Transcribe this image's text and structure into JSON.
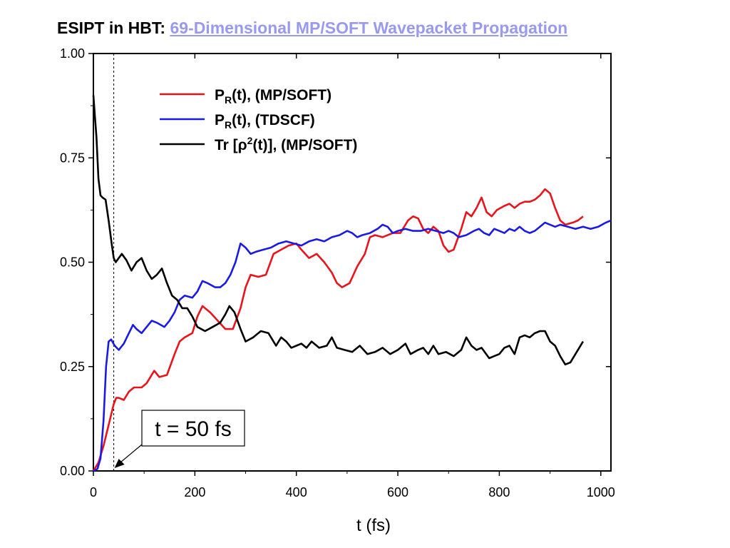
{
  "header": {
    "title_prefix": "ESIPT in HBT:",
    "title_link": "69-Dimensional MP/SOFT Wavepacket Propagation"
  },
  "colors": {
    "pr_mpsoft": "#e8141b",
    "pr_tdscf": "#1a1ae6",
    "trace": "#000000",
    "link": "#9999ee"
  },
  "chart_data": {
    "type": "line",
    "title": "ESIPT in HBT: 69-Dimensional MP/SOFT Wavepacket Propagation",
    "xlabel": "t (fs)",
    "ylabel": "",
    "xlim": [
      0,
      1020
    ],
    "ylim": [
      0,
      1.0
    ],
    "x_ticks": [
      "0",
      "200",
      "400",
      "600",
      "800",
      "1000"
    ],
    "y_ticks": [
      "0.00",
      "0.25",
      "0.50",
      "0.75",
      "1.00"
    ],
    "grid": false,
    "legend_position": "top-center",
    "series": [
      {
        "name": "PR(t), (MP/SOFT)",
        "legend_main": "P",
        "legend_sub": "R",
        "legend_rest": "(t), (MP/SOFT)",
        "color": "#e8141b",
        "points": [
          [
            0,
            0
          ],
          [
            10,
            0.02
          ],
          [
            20,
            0.06
          ],
          [
            30,
            0.11
          ],
          [
            40,
            0.16
          ],
          [
            45,
            0.175
          ],
          [
            50,
            0.175
          ],
          [
            60,
            0.17
          ],
          [
            70,
            0.19
          ],
          [
            80,
            0.2
          ],
          [
            95,
            0.2
          ],
          [
            105,
            0.21
          ],
          [
            120,
            0.24
          ],
          [
            130,
            0.225
          ],
          [
            145,
            0.23
          ],
          [
            160,
            0.28
          ],
          [
            170,
            0.31
          ],
          [
            180,
            0.32
          ],
          [
            195,
            0.33
          ],
          [
            205,
            0.37
          ],
          [
            215,
            0.395
          ],
          [
            230,
            0.38
          ],
          [
            245,
            0.36
          ],
          [
            260,
            0.34
          ],
          [
            275,
            0.34
          ],
          [
            290,
            0.39
          ],
          [
            300,
            0.44
          ],
          [
            310,
            0.47
          ],
          [
            325,
            0.465
          ],
          [
            340,
            0.47
          ],
          [
            355,
            0.52
          ],
          [
            370,
            0.53
          ],
          [
            385,
            0.54
          ],
          [
            400,
            0.545
          ],
          [
            410,
            0.53
          ],
          [
            425,
            0.51
          ],
          [
            440,
            0.52
          ],
          [
            455,
            0.5
          ],
          [
            470,
            0.475
          ],
          [
            480,
            0.45
          ],
          [
            490,
            0.44
          ],
          [
            505,
            0.45
          ],
          [
            520,
            0.49
          ],
          [
            535,
            0.52
          ],
          [
            545,
            0.56
          ],
          [
            555,
            0.565
          ],
          [
            570,
            0.56
          ],
          [
            590,
            0.57
          ],
          [
            605,
            0.57
          ],
          [
            620,
            0.6
          ],
          [
            630,
            0.61
          ],
          [
            640,
            0.605
          ],
          [
            650,
            0.58
          ],
          [
            660,
            0.57
          ],
          [
            670,
            0.585
          ],
          [
            680,
            0.575
          ],
          [
            690,
            0.54
          ],
          [
            700,
            0.525
          ],
          [
            710,
            0.53
          ],
          [
            725,
            0.58
          ],
          [
            735,
            0.62
          ],
          [
            745,
            0.61
          ],
          [
            755,
            0.63
          ],
          [
            765,
            0.655
          ],
          [
            775,
            0.62
          ],
          [
            785,
            0.61
          ],
          [
            795,
            0.625
          ],
          [
            810,
            0.635
          ],
          [
            820,
            0.64
          ],
          [
            830,
            0.63
          ],
          [
            840,
            0.64
          ],
          [
            850,
            0.645
          ],
          [
            860,
            0.645
          ],
          [
            870,
            0.65
          ],
          [
            880,
            0.66
          ],
          [
            890,
            0.675
          ],
          [
            900,
            0.665
          ],
          [
            910,
            0.63
          ],
          [
            920,
            0.6
          ],
          [
            930,
            0.59
          ],
          [
            945,
            0.595
          ],
          [
            955,
            0.6
          ],
          [
            965,
            0.61
          ]
        ]
      },
      {
        "name": "PR(t), (TDSCF)",
        "legend_main": "P",
        "legend_sub": "R",
        "legend_rest": "(t), (TDSCF)",
        "color": "#1a1ae6",
        "points": [
          [
            0,
            0
          ],
          [
            8,
            0.005
          ],
          [
            14,
            0.03
          ],
          [
            20,
            0.12
          ],
          [
            25,
            0.25
          ],
          [
            30,
            0.31
          ],
          [
            35,
            0.315
          ],
          [
            42,
            0.3
          ],
          [
            50,
            0.29
          ],
          [
            60,
            0.305
          ],
          [
            70,
            0.33
          ],
          [
            78,
            0.35
          ],
          [
            85,
            0.34
          ],
          [
            95,
            0.33
          ],
          [
            105,
            0.345
          ],
          [
            115,
            0.36
          ],
          [
            125,
            0.355
          ],
          [
            140,
            0.345
          ],
          [
            150,
            0.36
          ],
          [
            160,
            0.38
          ],
          [
            170,
            0.41
          ],
          [
            180,
            0.42
          ],
          [
            195,
            0.415
          ],
          [
            205,
            0.43
          ],
          [
            215,
            0.455
          ],
          [
            225,
            0.45
          ],
          [
            240,
            0.44
          ],
          [
            250,
            0.44
          ],
          [
            260,
            0.45
          ],
          [
            270,
            0.47
          ],
          [
            280,
            0.5
          ],
          [
            290,
            0.545
          ],
          [
            300,
            0.535
          ],
          [
            310,
            0.52
          ],
          [
            320,
            0.525
          ],
          [
            335,
            0.53
          ],
          [
            350,
            0.535
          ],
          [
            365,
            0.545
          ],
          [
            380,
            0.55
          ],
          [
            395,
            0.545
          ],
          [
            410,
            0.54
          ],
          [
            425,
            0.55
          ],
          [
            440,
            0.555
          ],
          [
            455,
            0.55
          ],
          [
            470,
            0.56
          ],
          [
            485,
            0.565
          ],
          [
            500,
            0.575
          ],
          [
            510,
            0.57
          ],
          [
            520,
            0.56
          ],
          [
            530,
            0.565
          ],
          [
            545,
            0.57
          ],
          [
            560,
            0.58
          ],
          [
            570,
            0.59
          ],
          [
            580,
            0.585
          ],
          [
            590,
            0.57
          ],
          [
            600,
            0.575
          ],
          [
            615,
            0.58
          ],
          [
            630,
            0.575
          ],
          [
            645,
            0.575
          ],
          [
            660,
            0.58
          ],
          [
            675,
            0.575
          ],
          [
            690,
            0.57
          ],
          [
            700,
            0.575
          ],
          [
            710,
            0.57
          ],
          [
            720,
            0.56
          ],
          [
            735,
            0.565
          ],
          [
            750,
            0.575
          ],
          [
            760,
            0.58
          ],
          [
            770,
            0.57
          ],
          [
            780,
            0.565
          ],
          [
            790,
            0.58
          ],
          [
            800,
            0.575
          ],
          [
            810,
            0.57
          ],
          [
            820,
            0.58
          ],
          [
            830,
            0.575
          ],
          [
            840,
            0.585
          ],
          [
            850,
            0.575
          ],
          [
            860,
            0.57
          ],
          [
            870,
            0.575
          ],
          [
            880,
            0.585
          ],
          [
            890,
            0.595
          ],
          [
            900,
            0.59
          ],
          [
            910,
            0.585
          ],
          [
            920,
            0.59
          ],
          [
            935,
            0.585
          ],
          [
            950,
            0.58
          ],
          [
            965,
            0.585
          ],
          [
            980,
            0.58
          ],
          [
            995,
            0.585
          ],
          [
            1010,
            0.595
          ],
          [
            1020,
            0.6
          ]
        ]
      },
      {
        "name": "Tr [ρ2(t)], (MP/SOFT)",
        "legend_main": "Tr [ρ",
        "legend_sup": "2",
        "legend_rest": "(t)], (MP/SOFT)",
        "color": "#000000",
        "points": [
          [
            0,
            0.9
          ],
          [
            3,
            0.85
          ],
          [
            6,
            0.8
          ],
          [
            10,
            0.7
          ],
          [
            14,
            0.66
          ],
          [
            18,
            0.655
          ],
          [
            24,
            0.65
          ],
          [
            30,
            0.6
          ],
          [
            36,
            0.545
          ],
          [
            40,
            0.51
          ],
          [
            44,
            0.5
          ],
          [
            50,
            0.51
          ],
          [
            56,
            0.52
          ],
          [
            65,
            0.505
          ],
          [
            75,
            0.48
          ],
          [
            85,
            0.5
          ],
          [
            95,
            0.51
          ],
          [
            105,
            0.48
          ],
          [
            115,
            0.46
          ],
          [
            125,
            0.47
          ],
          [
            135,
            0.485
          ],
          [
            145,
            0.45
          ],
          [
            155,
            0.42
          ],
          [
            165,
            0.41
          ],
          [
            175,
            0.39
          ],
          [
            185,
            0.39
          ],
          [
            195,
            0.37
          ],
          [
            205,
            0.345
          ],
          [
            220,
            0.335
          ],
          [
            235,
            0.345
          ],
          [
            250,
            0.355
          ],
          [
            260,
            0.375
          ],
          [
            268,
            0.395
          ],
          [
            278,
            0.38
          ],
          [
            290,
            0.34
          ],
          [
            300,
            0.31
          ],
          [
            315,
            0.32
          ],
          [
            330,
            0.335
          ],
          [
            345,
            0.33
          ],
          [
            360,
            0.3
          ],
          [
            370,
            0.32
          ],
          [
            380,
            0.31
          ],
          [
            390,
            0.295
          ],
          [
            400,
            0.3
          ],
          [
            410,
            0.305
          ],
          [
            420,
            0.295
          ],
          [
            430,
            0.31
          ],
          [
            445,
            0.295
          ],
          [
            460,
            0.3
          ],
          [
            470,
            0.32
          ],
          [
            480,
            0.295
          ],
          [
            495,
            0.29
          ],
          [
            510,
            0.285
          ],
          [
            525,
            0.3
          ],
          [
            540,
            0.28
          ],
          [
            555,
            0.285
          ],
          [
            570,
            0.295
          ],
          [
            585,
            0.28
          ],
          [
            600,
            0.29
          ],
          [
            615,
            0.305
          ],
          [
            625,
            0.28
          ],
          [
            640,
            0.29
          ],
          [
            650,
            0.295
          ],
          [
            660,
            0.28
          ],
          [
            670,
            0.3
          ],
          [
            680,
            0.28
          ],
          [
            695,
            0.285
          ],
          [
            710,
            0.275
          ],
          [
            725,
            0.29
          ],
          [
            735,
            0.32
          ],
          [
            745,
            0.3
          ],
          [
            755,
            0.29
          ],
          [
            765,
            0.295
          ],
          [
            780,
            0.27
          ],
          [
            790,
            0.275
          ],
          [
            800,
            0.28
          ],
          [
            810,
            0.295
          ],
          [
            820,
            0.3
          ],
          [
            830,
            0.28
          ],
          [
            840,
            0.32
          ],
          [
            850,
            0.325
          ],
          [
            860,
            0.32
          ],
          [
            870,
            0.33
          ],
          [
            880,
            0.335
          ],
          [
            890,
            0.335
          ],
          [
            900,
            0.31
          ],
          [
            910,
            0.3
          ],
          [
            920,
            0.275
          ],
          [
            930,
            0.255
          ],
          [
            940,
            0.26
          ],
          [
            950,
            0.28
          ],
          [
            965,
            0.31
          ]
        ]
      }
    ],
    "annotations": [
      {
        "text": "t = 50 fs",
        "x_data": 50
      }
    ]
  }
}
